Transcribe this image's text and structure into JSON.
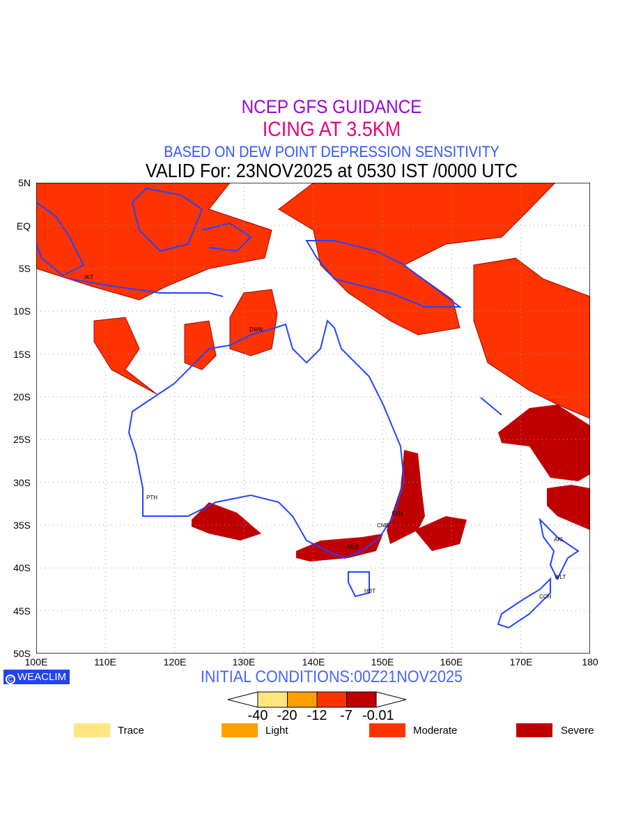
{
  "titles": {
    "line1": "NCEP GFS GUIDANCE",
    "line2": "ICING AT 3.5KM",
    "line3": "BASED ON DEW POINT DEPRESSION SENSITIVITY",
    "line4": "VALID For: 23NOV2025 at 0530 IST /0000 UTC"
  },
  "colors": {
    "title1": "#9900dd",
    "title2": "#ee0077",
    "title3": "#3355ff",
    "coast": "#2244ff",
    "trace": "#ffe680",
    "light": "#ff9f00",
    "moderate": "#ff3300",
    "severe": "#c00000"
  },
  "axes": {
    "lat_labels": [
      "5N",
      "EQ",
      "5S",
      "10S",
      "15S",
      "20S",
      "25S",
      "30S",
      "35S",
      "40S",
      "45S",
      "50S"
    ],
    "lon_labels": [
      "100E",
      "110E",
      "120E",
      "130E",
      "140E",
      "150E",
      "160E",
      "170E",
      "180"
    ]
  },
  "cities": [
    "JKT",
    "DWN",
    "PTH",
    "SYN",
    "CNB",
    "MLB",
    "HBT",
    "AKL",
    "WLT",
    "CCH"
  ],
  "footer": {
    "brand": "WEACLIM",
    "initial_conditions": "INITIAL CONDITIONS:00Z21NOV2025"
  },
  "colorbar": {
    "labels": [
      "-40",
      "-20",
      "-12",
      "-7",
      "-0.01"
    ]
  },
  "legend": [
    {
      "label": "Trace",
      "color": "#ffe680"
    },
    {
      "label": "Light",
      "color": "#ff9f00"
    },
    {
      "label": "Moderate",
      "color": "#ff3300"
    },
    {
      "label": "Severe",
      "color": "#c00000"
    }
  ]
}
